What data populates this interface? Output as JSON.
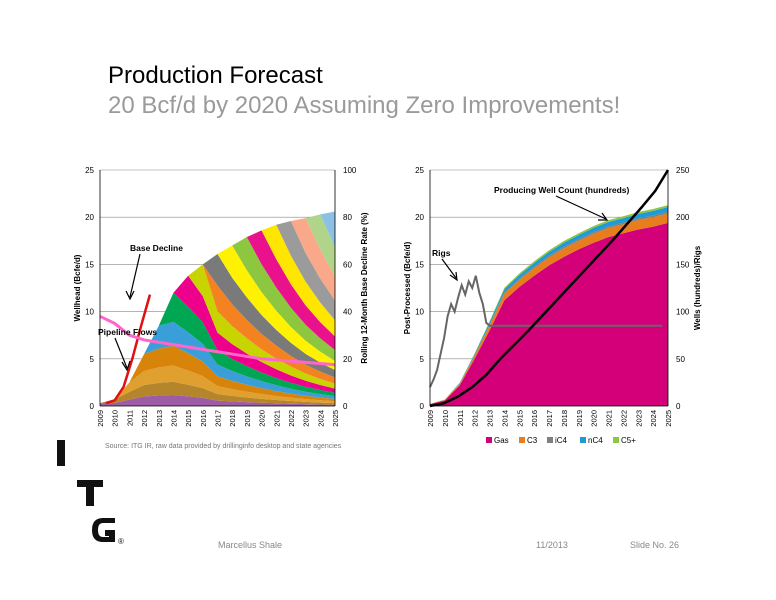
{
  "slide": {
    "title": "Production Forecast",
    "subtitle": "20 Bcf/d by 2020 Assuming Zero Improvements!",
    "source": "Source: ITG IR, raw data provided by drillinginfo desktop and state agencies",
    "footer_left": "Marcellus Shale",
    "footer_mid": "11/2013",
    "footer_right": "Slide No. 26",
    "logo_letters": [
      "I",
      "T",
      "G"
    ],
    "logo_mark": "®"
  },
  "chart_data": [
    {
      "type": "area",
      "x": [
        "2009",
        "2010",
        "2011",
        "2012",
        "2013",
        "2014",
        "2015",
        "2016",
        "2017",
        "2018",
        "2019",
        "2020",
        "2021",
        "2022",
        "2023",
        "2024",
        "2025"
      ],
      "ylabel": "Wellhead (Bcfe/d)",
      "y2label": "Rolling 12-Month Base Decline Rate (%)",
      "ylim": [
        0,
        25
      ],
      "y2lim": [
        0,
        100
      ],
      "yticks": [
        0,
        5,
        10,
        15,
        20,
        25
      ],
      "y2ticks": [
        0,
        20,
        40,
        60,
        80,
        100
      ],
      "total_wellhead": [
        0.3,
        0.7,
        2.5,
        5.5,
        8.5,
        12.0,
        13.8,
        15.0,
        16.1,
        17.0,
        17.9,
        18.6,
        19.2,
        19.6,
        19.9,
        20.3,
        20.6
      ],
      "vintage_colors": [
        "#9e5ba6",
        "#b5852c",
        "#e0a030",
        "#d8840a",
        "#3a9fd8",
        "#00a651",
        "#ec008c",
        "#c8d400",
        "#f58220",
        "#7a7a7a",
        "#fff200",
        "#8dc63f",
        "#e9128c",
        "#ffe600",
        "#9b9b9b",
        "#f9a98a",
        "#b0d58a",
        "#8cc0e5"
      ],
      "base_decline_rate": [
        38,
        35,
        30,
        28,
        27,
        26,
        25,
        24,
        23,
        22,
        21,
        20,
        19.5,
        19,
        18.5,
        18,
        17.5
      ],
      "pipeline_flows": [
        0.3,
        0.6,
        2.0,
        5.0,
        8.5,
        11.8
      ],
      "annotations": [
        "Base Decline",
        "Pipeline Flows"
      ]
    },
    {
      "type": "area",
      "x": [
        "2009",
        "2010",
        "2011",
        "2012",
        "2013",
        "2014",
        "2015",
        "2016",
        "2017",
        "2018",
        "2019",
        "2020",
        "2021",
        "2022",
        "2023",
        "2024",
        "2025"
      ],
      "ylabel": "Post-Processed (Bcfe/d)",
      "y2label": "Wells (hundreds)/Rigs",
      "ylim": [
        0,
        25
      ],
      "y2lim": [
        0,
        250
      ],
      "yticks": [
        0,
        5,
        10,
        15,
        20,
        25
      ],
      "y2ticks": [
        0,
        50,
        100,
        150,
        200,
        250
      ],
      "series": [
        {
          "name": "Gas",
          "color": "#d4007a",
          "values": [
            0.2,
            0.6,
            2.2,
            5.0,
            8.0,
            11.2,
            12.6,
            13.8,
            14.9,
            15.8,
            16.6,
            17.3,
            17.9,
            18.3,
            18.7,
            19.0,
            19.4
          ]
        },
        {
          "name": "C3",
          "color": "#e87d1e",
          "values": [
            0.02,
            0.05,
            0.15,
            0.3,
            0.5,
            0.7,
            0.75,
            0.8,
            0.85,
            0.9,
            0.9,
            0.95,
            0.95,
            0.95,
            1.0,
            1.0,
            1.0
          ]
        },
        {
          "name": "iC4",
          "color": "#7f7f7f",
          "values": [
            0.0,
            0.01,
            0.03,
            0.06,
            0.1,
            0.13,
            0.14,
            0.15,
            0.15,
            0.16,
            0.16,
            0.17,
            0.17,
            0.17,
            0.17,
            0.18,
            0.18
          ]
        },
        {
          "name": "nC4",
          "color": "#1f9ad6",
          "values": [
            0.01,
            0.02,
            0.07,
            0.15,
            0.25,
            0.35,
            0.38,
            0.4,
            0.42,
            0.44,
            0.45,
            0.46,
            0.47,
            0.48,
            0.48,
            0.49,
            0.5
          ]
        },
        {
          "name": "C5+",
          "color": "#8dc63f",
          "values": [
            0.0,
            0.01,
            0.03,
            0.07,
            0.12,
            0.15,
            0.16,
            0.17,
            0.18,
            0.18,
            0.19,
            0.19,
            0.2,
            0.2,
            0.2,
            0.2,
            0.2
          ]
        }
      ],
      "rigs_x": [
        2009.0,
        2009.25,
        2009.5,
        2009.75,
        2010.0,
        2010.25,
        2010.5,
        2010.75,
        2011.0,
        2011.25,
        2011.5,
        2011.75,
        2012.0,
        2012.25,
        2012.5,
        2012.75,
        2013.0,
        2013.25,
        2014,
        2015,
        2016,
        2017,
        2018,
        2019,
        2020,
        2021,
        2022,
        2023,
        2024,
        2025.5
      ],
      "rigs": [
        20,
        28,
        38,
        55,
        72,
        95,
        108,
        100,
        115,
        128,
        118,
        132,
        125,
        138,
        120,
        108,
        88,
        85,
        85,
        85,
        85,
        85,
        85,
        85,
        85,
        85,
        85,
        85,
        85,
        85
      ],
      "well_count": [
        0,
        3,
        10,
        20,
        33,
        50,
        65,
        80,
        96,
        112,
        128,
        144,
        160,
        176,
        193,
        210,
        228,
        250
      ],
      "well_count_x": [
        2009,
        2010,
        2011,
        2012,
        2013,
        2014,
        2015,
        2016,
        2017,
        2018,
        2019,
        2020,
        2021,
        2022,
        2023,
        2024,
        2025,
        2025.9
      ],
      "annotations": [
        "Producing Well Count (hundreds)",
        "Rigs"
      ]
    }
  ]
}
